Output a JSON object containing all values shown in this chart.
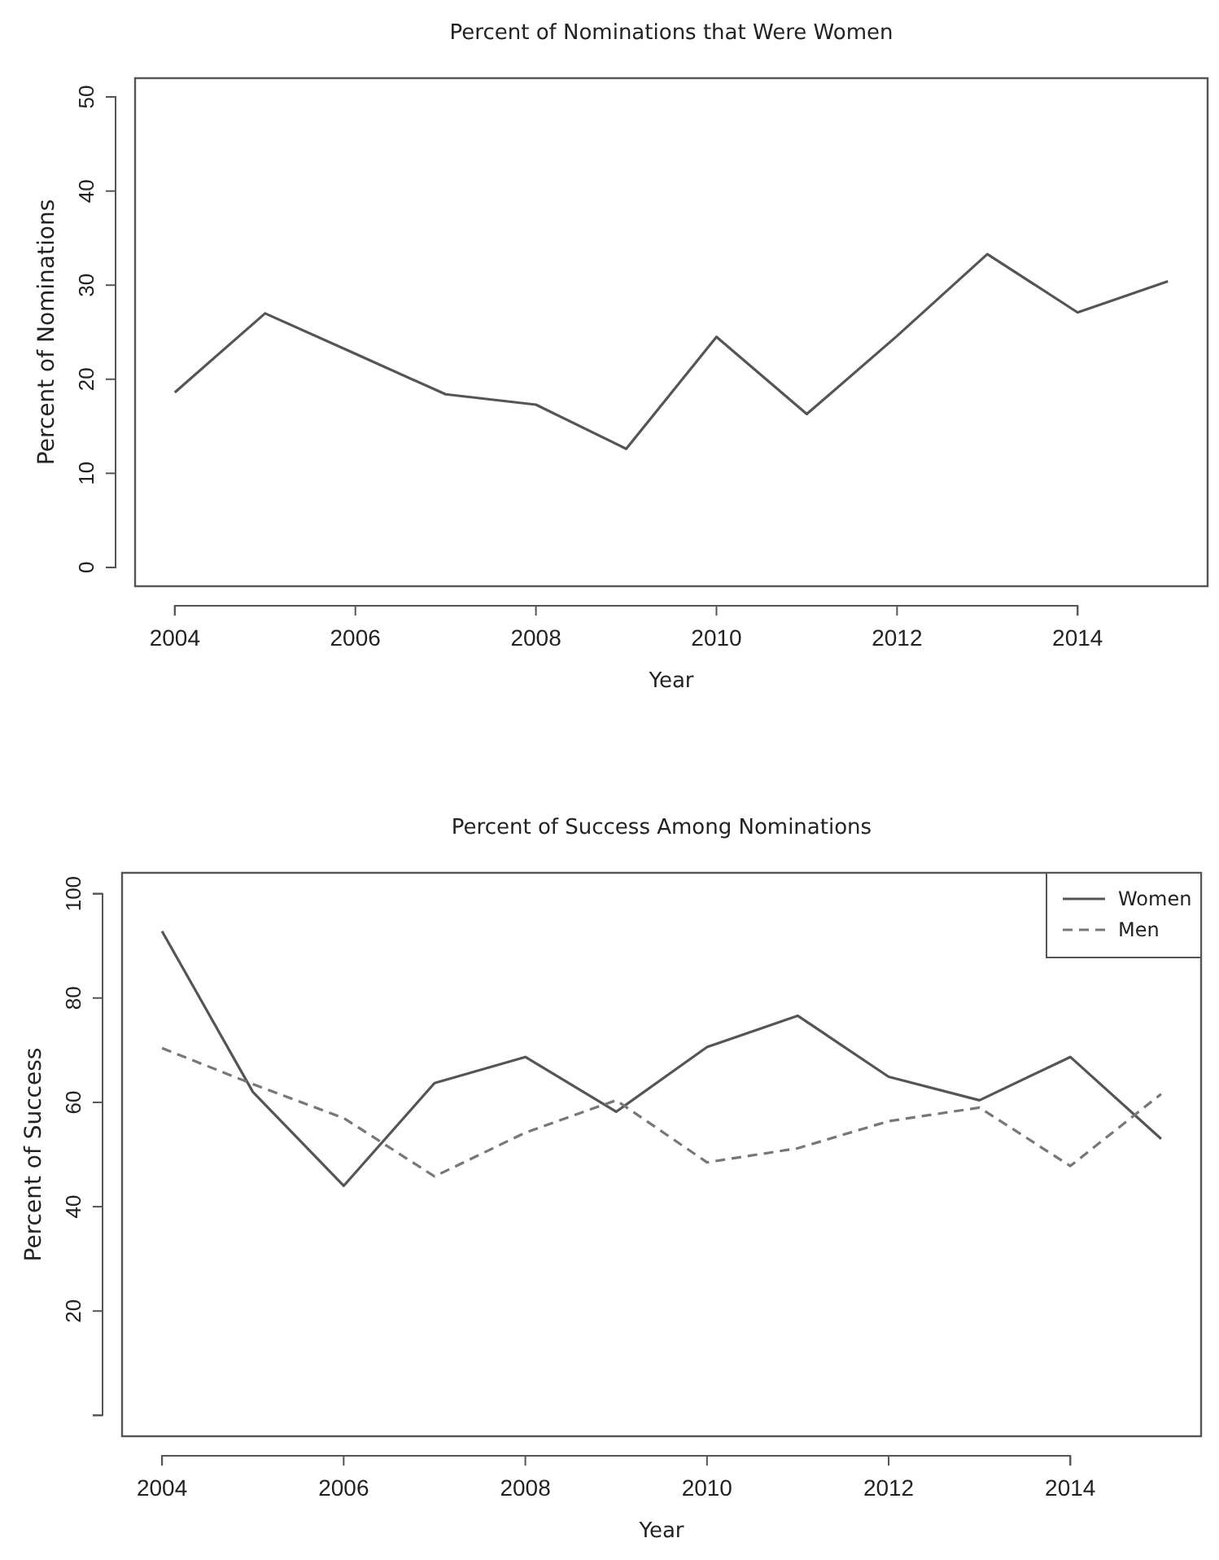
{
  "chart_data": [
    {
      "type": "line",
      "title": "Percent of Nominations that Were Women",
      "xlabel": "Year",
      "ylabel": "Percent of Nominations",
      "x": [
        2004,
        2005,
        2006,
        2007,
        2008,
        2009,
        2010,
        2011,
        2012,
        2013,
        2014,
        2015
      ],
      "series": [
        {
          "color": "#555555",
          "line_style": "solid",
          "values": [
            18.6,
            27,
            22.7,
            18.4,
            17.3,
            12.6,
            24.5,
            16.3,
            24.6,
            33.3,
            27.1,
            30.4
          ]
        }
      ],
      "xlim": [
        2003.56,
        2015.44
      ],
      "xticks": [
        2004,
        2006,
        2008,
        2010,
        2012,
        2014
      ],
      "ylim": [
        -2,
        52
      ],
      "yticks": [
        0,
        10,
        20,
        30,
        40,
        50
      ],
      "grid": false,
      "legend": false
    },
    {
      "type": "line",
      "title": "Percent of Success Among Nominations",
      "xlabel": "Year",
      "ylabel": "Percent of Success",
      "x": [
        2004,
        2005,
        2006,
        2007,
        2008,
        2009,
        2010,
        2011,
        2012,
        2013,
        2014,
        2015
      ],
      "series": [
        {
          "name": "Women",
          "color": "#555555",
          "line_style": "solid",
          "values": [
            92.8,
            62,
            44,
            63.7,
            68.7,
            58.2,
            70.6,
            76.6,
            64.9,
            60.4,
            68.7,
            53
          ]
        },
        {
          "name": "Men",
          "color": "#777777",
          "line_style": "dashed",
          "values": [
            70.4,
            63.5,
            57,
            45.8,
            54.2,
            60.4,
            48.5,
            51.2,
            56.4,
            59,
            47.8,
            61.6
          ]
        }
      ],
      "xlim": [
        2003.56,
        2015.44
      ],
      "xticks": [
        2004,
        2006,
        2008,
        2010,
        2012,
        2014
      ],
      "ylim": [
        -4,
        104
      ],
      "yticks": [
        {
          "value": 0,
          "label": null
        },
        20,
        40,
        60,
        80,
        100
      ],
      "grid": false,
      "legend": "top right"
    }
  ]
}
